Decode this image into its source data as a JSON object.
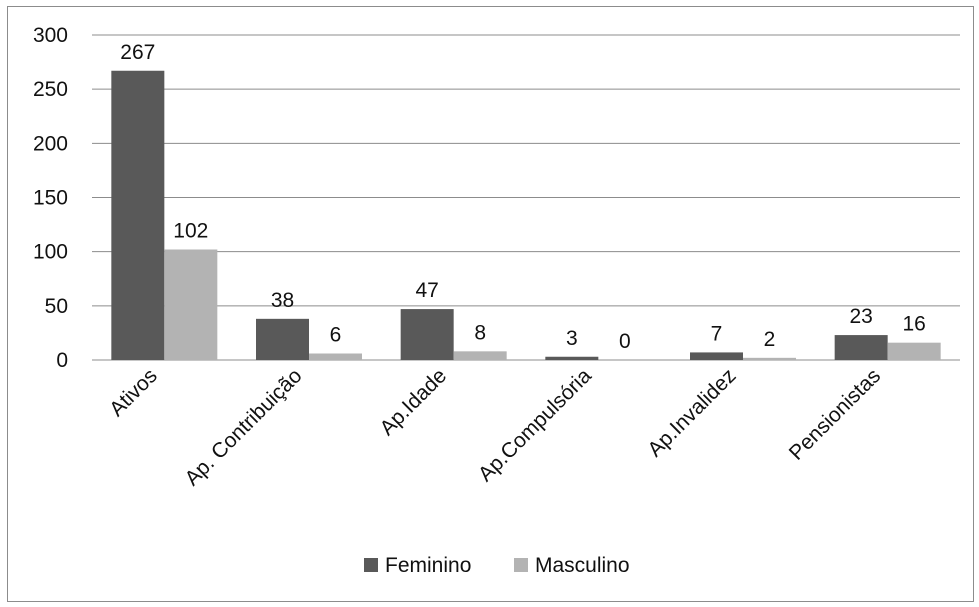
{
  "chart_data": {
    "type": "bar",
    "categories": [
      "Ativos",
      "Ap. Contribuição",
      "Ap.Idade",
      "Ap.Compulsória",
      "Ap.Invalidez",
      "Pensionistas"
    ],
    "series": [
      {
        "name": "Feminino",
        "values": [
          267,
          38,
          47,
          3,
          7,
          23
        ],
        "color": "#595959"
      },
      {
        "name": "Masculino",
        "values": [
          102,
          6,
          8,
          0,
          2,
          16
        ],
        "color": "#b3b3b3"
      }
    ],
    "yticks": [
      "0",
      "50",
      "100",
      "150",
      "200",
      "250",
      "300"
    ],
    "ylim": [
      0,
      300
    ],
    "grid": true,
    "legend_position": "bottom"
  }
}
